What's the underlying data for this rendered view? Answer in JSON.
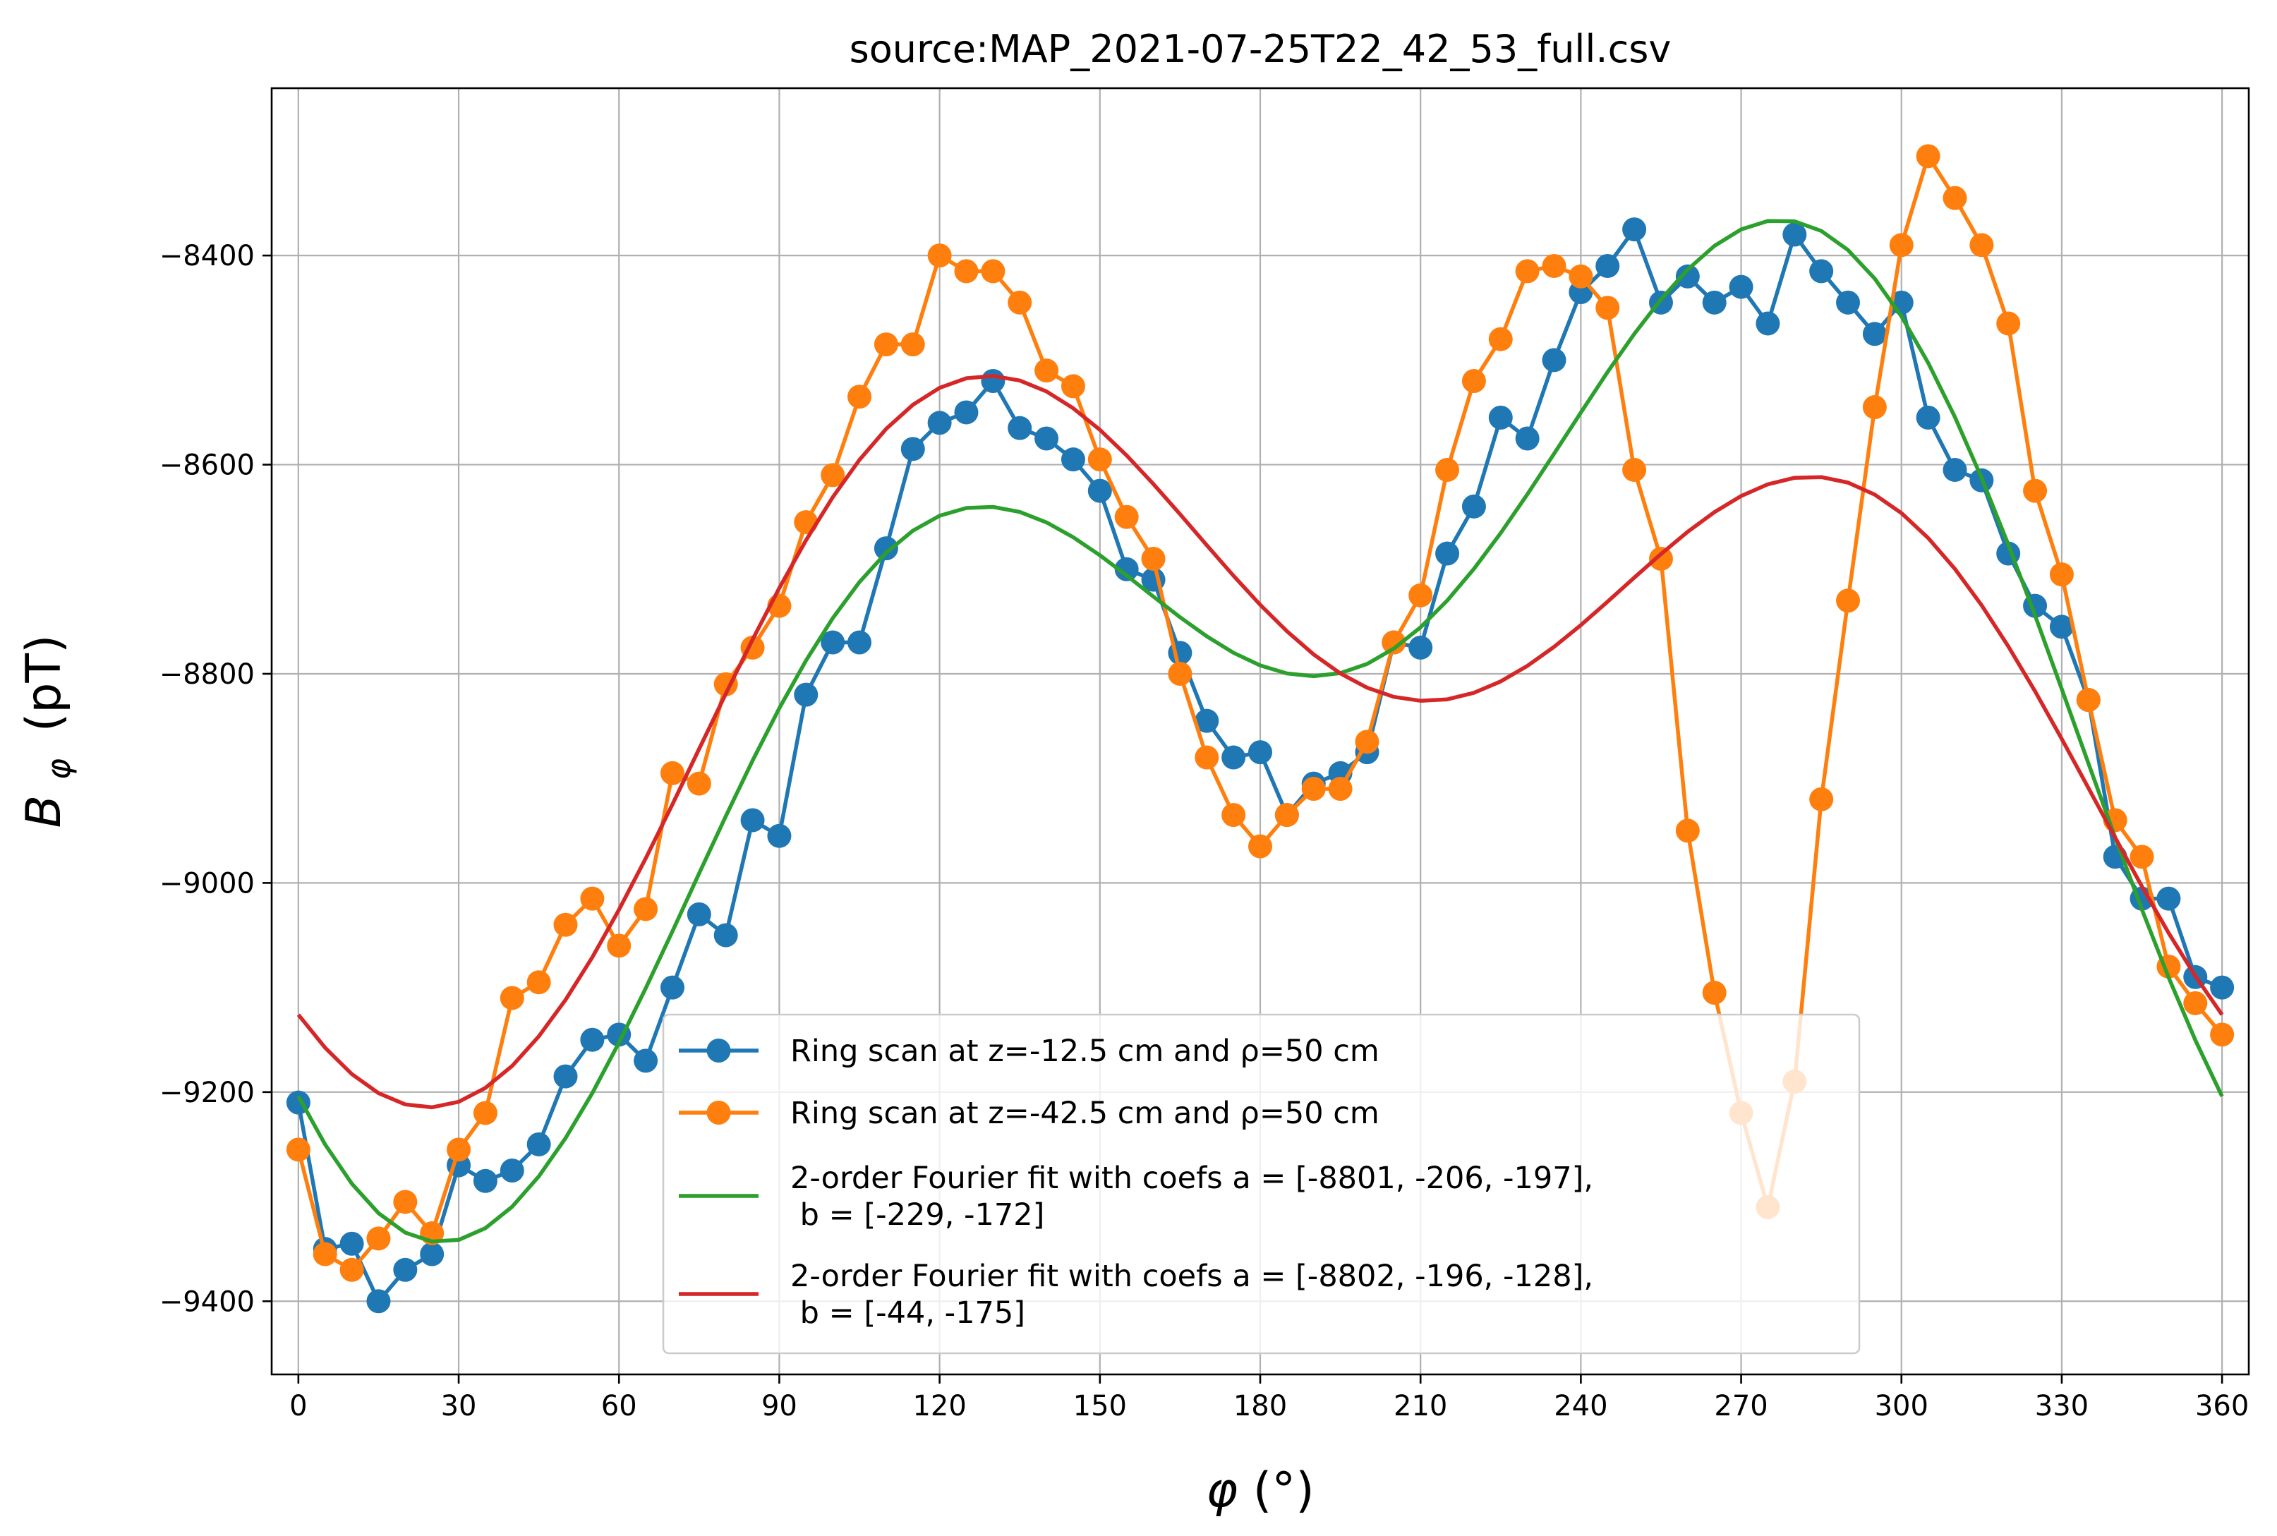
{
  "chart_data": {
    "type": "line",
    "title": "source:MAP_2021-07-25T22_42_53_full.csv",
    "xlabel_symbol": "φ",
    "xlabel_unit": "(°)",
    "ylabel_symbol": "B",
    "ylabel_subscript": "φ",
    "ylabel_unit": "(pT)",
    "xlim": [
      -5,
      365
    ],
    "ylim": [
      -9470,
      -8240
    ],
    "x_ticks": [
      0,
      30,
      60,
      90,
      120,
      150,
      180,
      210,
      240,
      270,
      300,
      330,
      360
    ],
    "x_tick_labels": [
      "0",
      "30",
      "60",
      "90",
      "120",
      "150",
      "180",
      "210",
      "240",
      "270",
      "300",
      "330",
      "360"
    ],
    "y_ticks": [
      -9400,
      -9200,
      -9000,
      -8800,
      -8600,
      -8400
    ],
    "y_tick_labels": [
      "−9400",
      "−9200",
      "−9000",
      "−8800",
      "−8600",
      "−8400"
    ],
    "grid": true,
    "legend_position": "lower-center",
    "x": [
      0,
      5,
      10,
      15,
      20,
      25,
      30,
      35,
      40,
      45,
      50,
      55,
      60,
      65,
      70,
      75,
      80,
      85,
      90,
      95,
      100,
      105,
      110,
      115,
      120,
      125,
      130,
      135,
      140,
      145,
      150,
      155,
      160,
      165,
      170,
      175,
      180,
      185,
      190,
      195,
      200,
      205,
      210,
      215,
      220,
      225,
      230,
      235,
      240,
      245,
      250,
      255,
      260,
      265,
      270,
      275,
      280,
      285,
      290,
      295,
      300,
      305,
      310,
      315,
      320,
      325,
      330,
      335,
      340,
      345,
      350,
      355,
      360
    ],
    "series": [
      {
        "name": "Ring scan at z=-12.5 cm and ρ=50 cm",
        "legend_lines": [
          "Ring scan at z=-12.5 cm and ρ=50 cm"
        ],
        "kind": "markers",
        "color": "#1f77b4",
        "values": [
          -9210,
          -9350,
          -9345,
          -9400,
          -9370,
          -9355,
          -9270,
          -9285,
          -9275,
          -9250,
          -9185,
          -9150,
          -9145,
          -9170,
          -9100,
          -9030,
          -9050,
          -8940,
          -8955,
          -8820,
          -8770,
          -8770,
          -8680,
          -8585,
          -8560,
          -8550,
          -8520,
          -8565,
          -8575,
          -8595,
          -8625,
          -8700,
          -8710,
          -8780,
          -8845,
          -8880,
          -8875,
          -8935,
          -8905,
          -8895,
          -8875,
          -8770,
          -8775,
          -8685,
          -8640,
          -8555,
          -8575,
          -8500,
          -8435,
          -8410,
          -8375,
          -8445,
          -8420,
          -8445,
          -8430,
          -8465,
          -8380,
          -8415,
          -8445,
          -8475,
          -8445,
          -8555,
          -8605,
          -8615,
          -8685,
          -8735,
          -8755,
          -8825,
          -8975,
          -9015,
          -9015,
          -9090,
          -9100
        ]
      },
      {
        "name": "Ring scan at z=-42.5 cm and ρ=50 cm",
        "legend_lines": [
          "Ring scan at z=-42.5 cm and ρ=50 cm"
        ],
        "kind": "markers",
        "color": "#ff7f0e",
        "values": [
          -9255,
          -9355,
          -9370,
          -9340,
          -9305,
          -9335,
          -9255,
          -9220,
          -9110,
          -9095,
          -9040,
          -9015,
          -9060,
          -9025,
          -8895,
          -8905,
          -8810,
          -8775,
          -8735,
          -8655,
          -8610,
          -8535,
          -8485,
          -8485,
          -8400,
          -8415,
          -8415,
          -8445,
          -8510,
          -8525,
          -8595,
          -8650,
          -8690,
          -8800,
          -8880,
          -8935,
          -8965,
          -8935,
          -8910,
          -8910,
          -8865,
          -8770,
          -8725,
          -8605,
          -8520,
          -8480,
          -8415,
          -8410,
          -8420,
          -8450,
          -8605,
          -8690,
          -8950,
          -9105,
          -9220,
          -9310,
          -9190,
          -8920,
          -8730,
          -8545,
          -8390,
          -8305,
          -8345,
          -8390,
          -8465,
          -8625,
          -8705,
          -8825,
          -8940,
          -8975,
          -9080,
          -9115,
          -9145
        ]
      },
      {
        "name": "2-order Fourier fit with coefs a = [-8801, -206, -197], b = [-229, -172]",
        "legend_lines": [
          "2-order Fourier fit with coefs a = [-8801, -206, -197],",
          " b = [-229, -172]"
        ],
        "kind": "line",
        "color": "#2ca02c",
        "a": [
          -8801,
          -206,
          -197
        ],
        "b": [
          -229,
          -172
        ],
        "period_deg": 360
      },
      {
        "name": "2-order Fourier fit with coefs a = [-8802, -196, -128], b = [-44, -175]",
        "legend_lines": [
          "2-order Fourier fit with coefs a = [-8802, -196, -128],",
          " b = [-44, -175]"
        ],
        "kind": "line",
        "color": "#d62728",
        "a": [
          -8802,
          -196,
          -128
        ],
        "b": [
          -44,
          -175
        ],
        "period_deg": 360
      }
    ]
  }
}
